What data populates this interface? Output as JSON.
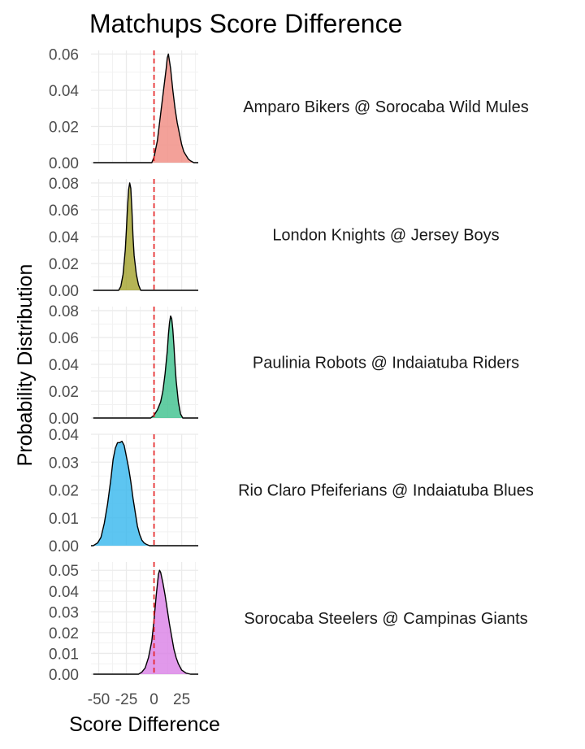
{
  "chart_data": {
    "type": "area",
    "title": "Matchups Score Difference",
    "xlabel": "Score Difference",
    "ylabel": "Probability Distribution",
    "xlim": [
      -57,
      40
    ],
    "x_ticks": [
      -50,
      -25,
      0,
      25
    ],
    "x_tick_labels": [
      "-50",
      "-25",
      "0",
      "25"
    ],
    "reference_line": {
      "x": 0,
      "color": "#e41a1c",
      "style": "dashed"
    },
    "grid": true,
    "panels": [
      {
        "name": "Amparo Bikers @ Sorocaba Wild Mules",
        "fill": "#f08a80",
        "ylim": [
          0,
          0.062
        ],
        "y_ticks": [
          0,
          0.02,
          0.04,
          0.06
        ],
        "y_tick_labels": [
          "0.00",
          "0.02",
          "0.04",
          "0.06"
        ],
        "x": [
          -55,
          -2,
          0,
          3,
          5,
          7,
          9,
          11,
          12,
          13,
          15,
          17,
          19,
          21,
          23,
          25,
          27,
          29,
          31,
          33,
          36,
          40
        ],
        "y": [
          0,
          0,
          0.003,
          0.012,
          0.022,
          0.032,
          0.042,
          0.052,
          0.058,
          0.06,
          0.052,
          0.04,
          0.03,
          0.022,
          0.016,
          0.01,
          0.006,
          0.004,
          0.002,
          0.001,
          0,
          0
        ]
      },
      {
        "name": "London Knights @ Jersey Boys",
        "fill": "#a3a12a",
        "ylim": [
          0,
          0.083
        ],
        "y_ticks": [
          0,
          0.02,
          0.04,
          0.06,
          0.08
        ],
        "y_tick_labels": [
          "0.00",
          "0.02",
          "0.04",
          "0.06",
          "0.08"
        ],
        "x": [
          -55,
          -32,
          -30,
          -28,
          -26,
          -25,
          -24,
          -23,
          -22,
          -21,
          -20,
          -19,
          -18,
          -16,
          -14,
          -12,
          40
        ],
        "y": [
          0,
          0,
          0.003,
          0.012,
          0.03,
          0.045,
          0.062,
          0.075,
          0.08,
          0.076,
          0.06,
          0.04,
          0.026,
          0.012,
          0.004,
          0,
          0
        ]
      },
      {
        "name": "Paulinia Robots @ Indaiatuba Riders",
        "fill": "#3cc08c",
        "ylim": [
          0,
          0.083
        ],
        "y_ticks": [
          0,
          0.02,
          0.04,
          0.06,
          0.08
        ],
        "y_tick_labels": [
          "0.00",
          "0.02",
          "0.04",
          "0.06",
          "0.08"
        ],
        "x": [
          -55,
          -3,
          0,
          3,
          6,
          8,
          10,
          12,
          13,
          14,
          15,
          16,
          17,
          18,
          19,
          20,
          22,
          24,
          26,
          40
        ],
        "y": [
          0,
          0,
          0.002,
          0.006,
          0.012,
          0.02,
          0.033,
          0.05,
          0.062,
          0.071,
          0.076,
          0.074,
          0.066,
          0.054,
          0.04,
          0.028,
          0.012,
          0.003,
          0,
          0
        ]
      },
      {
        "name": "Rio Claro Pfeiferians @ Indaiatuba Blues",
        "fill": "#35b7ee",
        "ylim": [
          0,
          0.04
        ],
        "y_ticks": [
          0,
          0.01,
          0.02,
          0.03,
          0.04
        ],
        "y_tick_labels": [
          "0.00",
          "0.01",
          "0.02",
          "0.03",
          "0.04"
        ],
        "x": [
          -60,
          -55,
          -51,
          -48,
          -45,
          -42,
          -39,
          -37,
          -35,
          -33,
          -31,
          -29,
          -27,
          -25,
          -23,
          -21,
          -19,
          -17,
          -15,
          -13,
          -11,
          -9,
          -7,
          -4,
          40
        ],
        "y": [
          0,
          0,
          0.001,
          0.003,
          0.008,
          0.015,
          0.024,
          0.031,
          0.035,
          0.037,
          0.037,
          0.0375,
          0.036,
          0.032,
          0.028,
          0.023,
          0.017,
          0.012,
          0.007,
          0.004,
          0.002,
          0.001,
          0.0005,
          0,
          0
        ]
      },
      {
        "name": "Sorocaba Steelers @ Campinas Giants",
        "fill": "#da80e6",
        "ylim": [
          0,
          0.054
        ],
        "y_ticks": [
          0,
          0.01,
          0.02,
          0.03,
          0.04,
          0.05
        ],
        "y_tick_labels": [
          "0.00",
          "0.01",
          "0.02",
          "0.03",
          "0.04",
          "0.05"
        ],
        "x": [
          -55,
          -14,
          -11,
          -8,
          -5,
          -2,
          0,
          2,
          4,
          5,
          6,
          8,
          10,
          12,
          14,
          16,
          18,
          20,
          22,
          25,
          29,
          33,
          40
        ],
        "y": [
          0,
          0,
          0.001,
          0.003,
          0.008,
          0.016,
          0.026,
          0.038,
          0.048,
          0.05,
          0.049,
          0.044,
          0.038,
          0.031,
          0.024,
          0.018,
          0.012,
          0.008,
          0.005,
          0.002,
          0.0005,
          0,
          0
        ]
      }
    ]
  }
}
